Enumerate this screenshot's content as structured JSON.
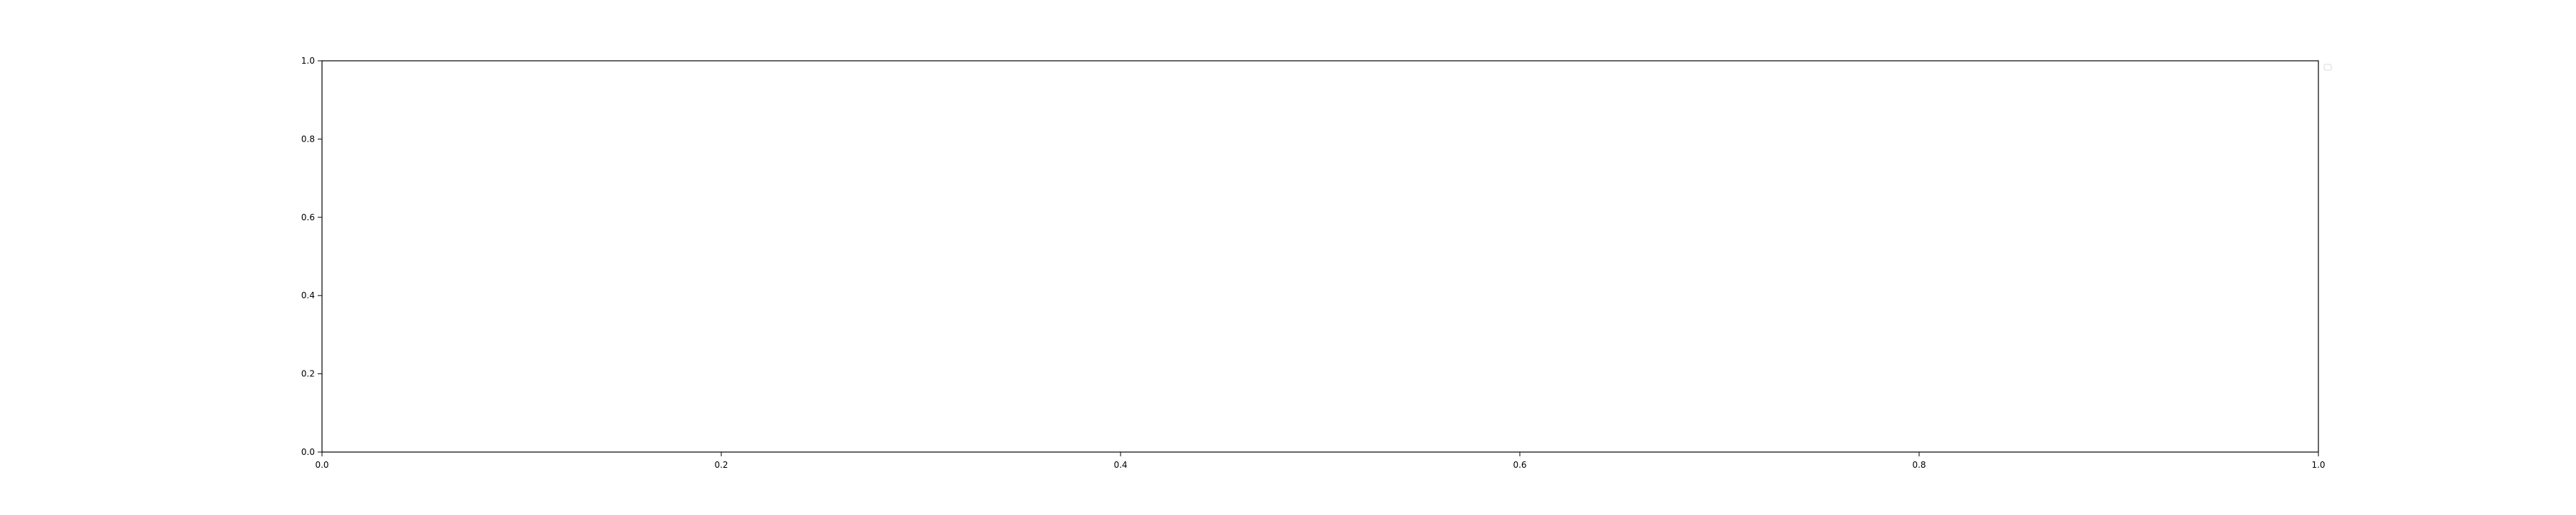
{
  "chart_data": {
    "type": "line",
    "title": "",
    "xlabel": "",
    "ylabel": "",
    "xlim": [
      0,
      1
    ],
    "ylim": [
      0,
      1
    ],
    "x_ticks": [
      0.0,
      0.2,
      0.4,
      0.6,
      0.8,
      1.0
    ],
    "x_tick_labels": [
      "0.0",
      "0.2",
      "0.4",
      "0.6",
      "0.8",
      "1.0"
    ],
    "y_ticks": [
      0.0,
      0.2,
      0.4,
      0.6,
      0.8,
      1.0
    ],
    "y_tick_labels": [
      "0.0",
      "0.2",
      "0.4",
      "0.6",
      "0.8",
      "1.0"
    ],
    "grid": false,
    "legend": "top-right",
    "series": []
  },
  "colors": {
    "axes": "#000000",
    "background": "#ffffff",
    "legend_border": "#d9d9d9"
  }
}
